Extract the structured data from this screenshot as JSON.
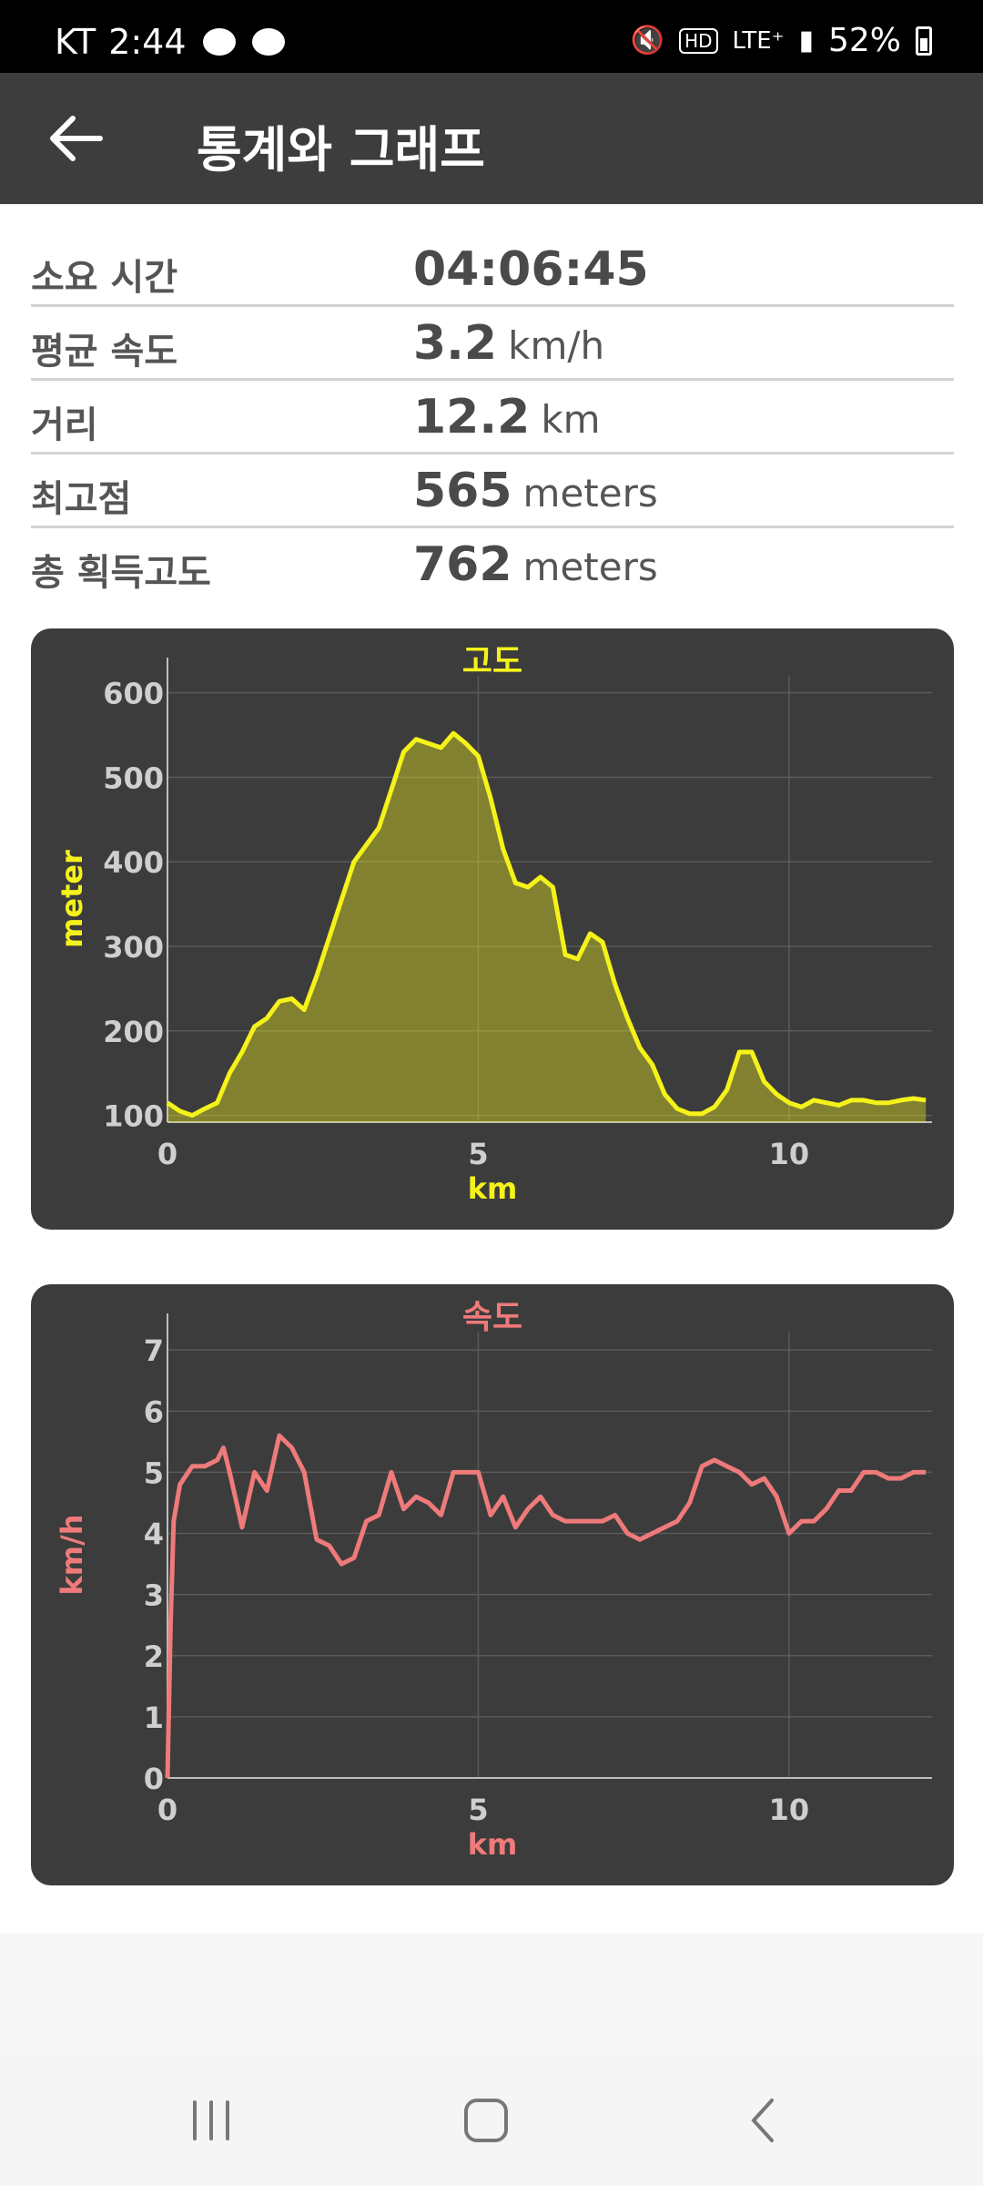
{
  "status_bar": {
    "carrier": "KT",
    "time": "2:44",
    "network": "LTE⁺",
    "battery": "52%",
    "icons": [
      "talk-icon",
      "talk-icon",
      "mute-icon",
      "hd-icon",
      "lte-icon",
      "signal-icon",
      "battery-icon"
    ]
  },
  "app_bar": {
    "title": "통계와 그래프",
    "back_icon": "back-arrow-icon"
  },
  "stats": [
    {
      "label": "소요 시간",
      "value": "04:06:45",
      "unit": ""
    },
    {
      "label": "평균 속도",
      "value": "3.2",
      "unit": "km/h"
    },
    {
      "label": "거리",
      "value": "12.2",
      "unit": "km"
    },
    {
      "label": "최고점",
      "value": "565",
      "unit": "meters"
    },
    {
      "label": "총 획득고도",
      "value": "762",
      "unit": "meters"
    }
  ],
  "colors": {
    "altitude": "#f5f21a",
    "speed": "#ef7a7a",
    "panel": "#3c3c3c",
    "appbar": "#3d3d3d"
  },
  "chart_data": [
    {
      "type": "area",
      "title": "고도",
      "xlabel": "km",
      "ylabel": "meter",
      "xlim": [
        0,
        12.3
      ],
      "ylim": [
        92,
        620
      ],
      "x_ticks": [
        0,
        5,
        10
      ],
      "y_ticks": [
        100,
        200,
        300,
        400,
        500,
        600
      ],
      "grid": true,
      "x": [
        0,
        0.2,
        0.4,
        0.6,
        0.8,
        1.0,
        1.2,
        1.4,
        1.6,
        1.8,
        2.0,
        2.2,
        2.4,
        2.6,
        2.8,
        3.0,
        3.2,
        3.4,
        3.6,
        3.8,
        4.0,
        4.2,
        4.4,
        4.6,
        4.8,
        5.0,
        5.2,
        5.4,
        5.6,
        5.8,
        6.0,
        6.2,
        6.4,
        6.6,
        6.8,
        7.0,
        7.2,
        7.4,
        7.6,
        7.8,
        8.0,
        8.2,
        8.4,
        8.6,
        8.8,
        9.0,
        9.2,
        9.4,
        9.6,
        9.8,
        10.0,
        10.2,
        10.4,
        10.6,
        10.8,
        11.0,
        11.2,
        11.4,
        11.6,
        11.8,
        12.0,
        12.2
      ],
      "y": [
        115,
        105,
        100,
        108,
        115,
        150,
        175,
        205,
        215,
        235,
        238,
        225,
        265,
        310,
        355,
        400,
        420,
        440,
        485,
        530,
        545,
        540,
        535,
        552,
        540,
        525,
        475,
        415,
        375,
        370,
        382,
        370,
        290,
        285,
        315,
        305,
        255,
        215,
        180,
        160,
        125,
        108,
        102,
        102,
        110,
        130,
        175,
        175,
        140,
        125,
        115,
        110,
        118,
        115,
        112,
        118,
        118,
        115,
        115,
        118,
        120,
        118
      ]
    },
    {
      "type": "line",
      "title": "속도",
      "xlabel": "km",
      "ylabel": "km/h",
      "xlim": [
        0,
        12.3
      ],
      "ylim": [
        0,
        7.3
      ],
      "x_ticks": [
        0,
        5,
        10
      ],
      "y_ticks": [
        0,
        1,
        2,
        3,
        4,
        5,
        6,
        7
      ],
      "grid": true,
      "x": [
        0,
        0.05,
        0.1,
        0.2,
        0.4,
        0.6,
        0.8,
        0.9,
        1.0,
        1.2,
        1.4,
        1.6,
        1.8,
        2.0,
        2.2,
        2.4,
        2.6,
        2.8,
        3.0,
        3.2,
        3.4,
        3.6,
        3.8,
        4.0,
        4.2,
        4.4,
        4.6,
        4.8,
        5.0,
        5.2,
        5.4,
        5.6,
        5.8,
        6.0,
        6.2,
        6.4,
        6.6,
        6.8,
        7.0,
        7.2,
        7.4,
        7.6,
        7.8,
        8.0,
        8.2,
        8.4,
        8.6,
        8.8,
        9.0,
        9.2,
        9.4,
        9.6,
        9.8,
        10.0,
        10.2,
        10.4,
        10.6,
        10.8,
        11.0,
        11.2,
        11.4,
        11.6,
        11.8,
        12.0,
        12.2
      ],
      "y": [
        0,
        2.5,
        4.2,
        4.8,
        5.1,
        5.1,
        5.2,
        5.4,
        5.0,
        4.1,
        5.0,
        4.7,
        5.6,
        5.4,
        5.0,
        3.9,
        3.8,
        3.5,
        3.6,
        4.2,
        4.3,
        5.0,
        4.4,
        4.6,
        4.5,
        4.3,
        5.0,
        5.0,
        5.0,
        4.3,
        4.6,
        4.1,
        4.4,
        4.6,
        4.3,
        4.2,
        4.2,
        4.2,
        4.2,
        4.3,
        4.0,
        3.9,
        4.0,
        4.1,
        4.2,
        4.5,
        5.1,
        5.2,
        5.1,
        5.0,
        4.8,
        4.9,
        4.6,
        4.0,
        4.2,
        4.2,
        4.4,
        4.7,
        4.7,
        5.0,
        5.0,
        4.9,
        4.9,
        5.0,
        5.0
      ]
    }
  ]
}
